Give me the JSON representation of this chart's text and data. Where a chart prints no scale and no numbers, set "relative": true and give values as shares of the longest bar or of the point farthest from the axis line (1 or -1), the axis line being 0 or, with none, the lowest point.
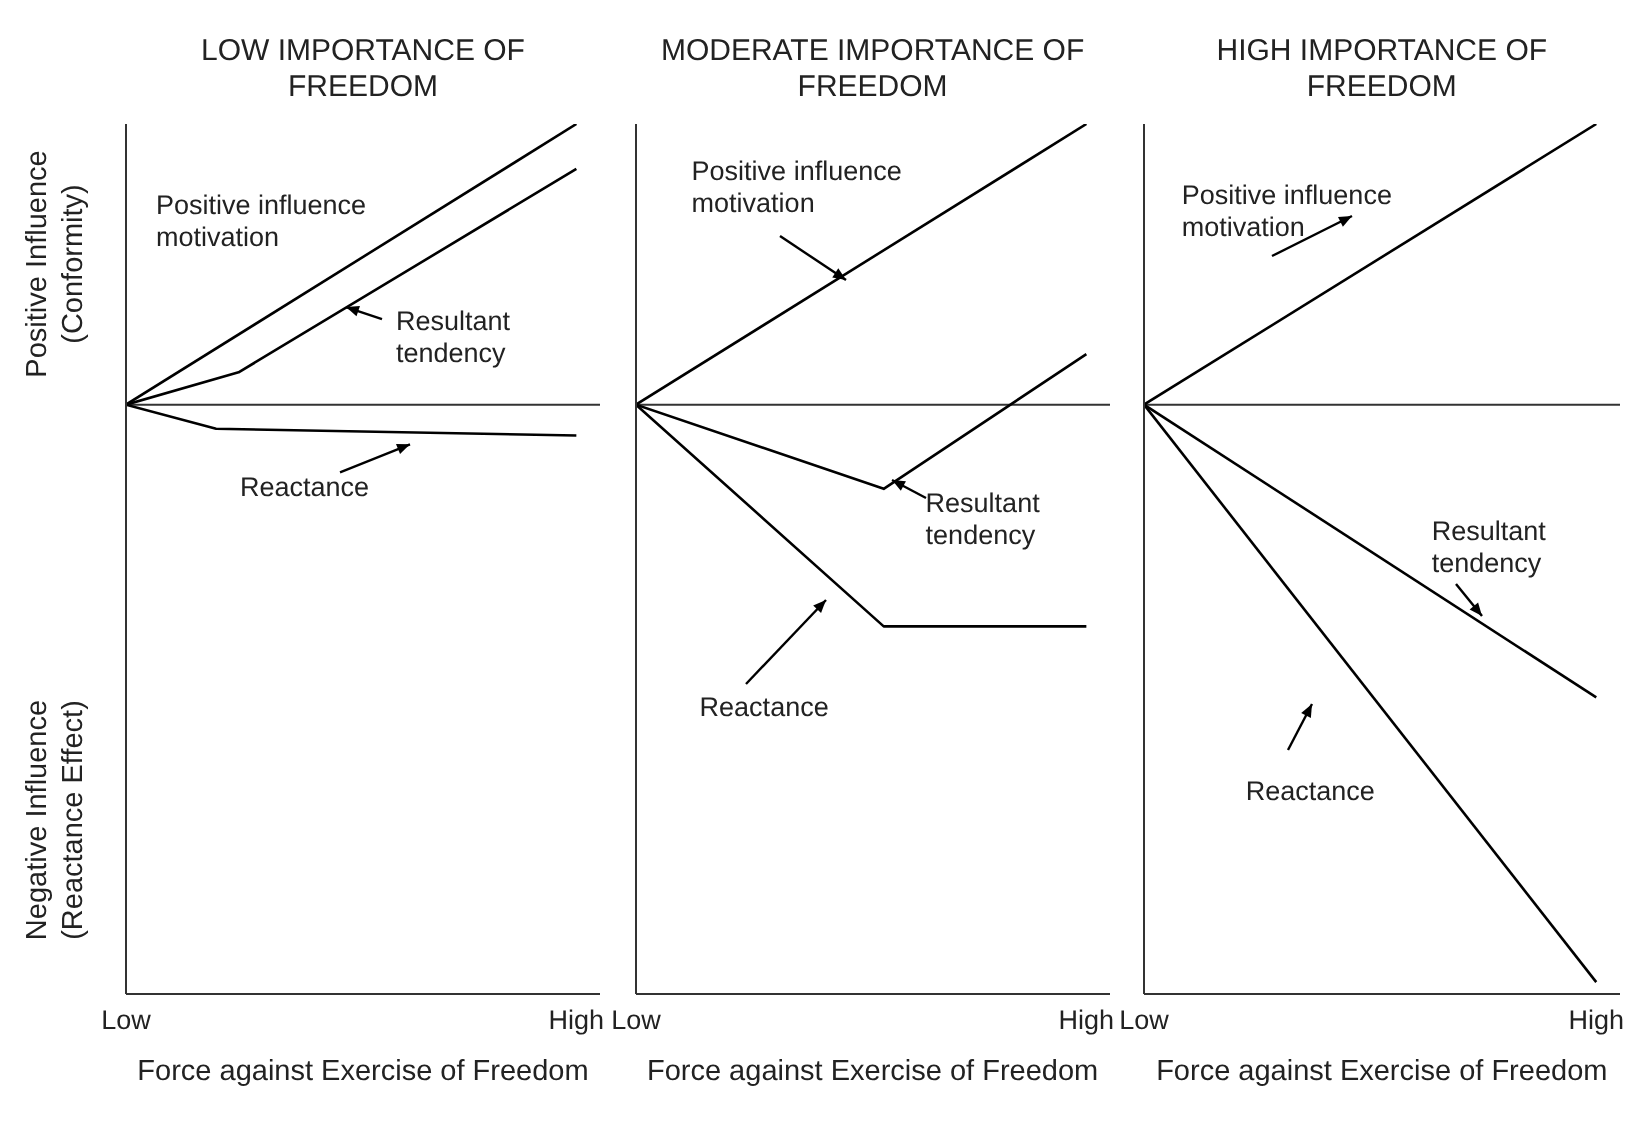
{
  "chart_data": [
    {
      "type": "line",
      "title": "LOW IMPORTANCE OF FREEDOM",
      "xlabel": "Force against Exercise of Freedom",
      "ylabel": "Positive Influence (Conformity)",
      "annotations": [
        "Negative Influence (Reactance Effect)"
      ],
      "relative": true,
      "categories": [
        "Low",
        null,
        null,
        null,
        null,
        null,
        null,
        null,
        null,
        null,
        null,
        null,
        null,
        null,
        null,
        null,
        null,
        null,
        null,
        null,
        "High"
      ],
      "series": [
        {
          "name": "Positive influence motivation",
          "color": "#000000",
          "values": [
            0,
            null,
            null,
            null,
            null,
            null,
            null,
            null,
            null,
            null,
            null,
            null,
            null,
            null,
            null,
            null,
            null,
            null,
            null,
            null,
            1
          ]
        },
        {
          "name": "Resultant tendency",
          "color": "#000000",
          "values": [
            0,
            null,
            null,
            null,
            null,
            0.115,
            null,
            null,
            null,
            null,
            null,
            null,
            null,
            null,
            null,
            null,
            null,
            null,
            null,
            null,
            0.84
          ]
        },
        {
          "name": "Reactance",
          "color": "#000000",
          "values": [
            0,
            null,
            null,
            null,
            -0.086,
            null,
            null,
            null,
            null,
            null,
            null,
            null,
            null,
            null,
            null,
            null,
            null,
            null,
            null,
            null,
            -0.11
          ]
        }
      ]
    },
    {
      "type": "line",
      "title": "MODERATE IMPORTANCE OF FREEDOM",
      "xlabel": "Force against Exercise of Freedom",
      "relative": true,
      "categories": [
        "Low",
        null,
        null,
        null,
        null,
        null,
        null,
        null,
        null,
        null,
        null,
        null,
        null,
        null,
        null,
        null,
        null,
        null,
        null,
        null,
        "High"
      ],
      "series": [
        {
          "name": "Positive influence motivation",
          "color": "#000000",
          "values": [
            0,
            null,
            null,
            null,
            null,
            null,
            null,
            null,
            null,
            null,
            null,
            null,
            null,
            null,
            null,
            null,
            null,
            null,
            null,
            null,
            1
          ]
        },
        {
          "name": "Resultant tendency",
          "color": "#000000",
          "values": [
            0,
            null,
            null,
            null,
            null,
            null,
            null,
            null,
            null,
            null,
            null,
            -0.3,
            null,
            null,
            null,
            null,
            null,
            null,
            null,
            null,
            0.18
          ]
        },
        {
          "name": "Reactance",
          "color": "#000000",
          "values": [
            0,
            null,
            null,
            null,
            null,
            null,
            null,
            null,
            null,
            null,
            null,
            -0.79,
            null,
            null,
            null,
            null,
            null,
            null,
            null,
            null,
            -0.79
          ]
        }
      ]
    },
    {
      "type": "line",
      "title": "HIGH IMPORTANCE OF FREEDOM",
      "xlabel": "Force against Exercise of Freedom",
      "relative": true,
      "categories": [
        "Low",
        null,
        null,
        null,
        null,
        null,
        null,
        null,
        null,
        null,
        null,
        null,
        null,
        null,
        null,
        null,
        null,
        null,
        null,
        null,
        "High"
      ],
      "series": [
        {
          "name": "Positive influence motivation",
          "color": "#000000",
          "values": [
            0,
            null,
            null,
            null,
            null,
            null,
            null,
            null,
            null,
            null,
            null,
            null,
            null,
            null,
            null,
            null,
            null,
            null,
            null,
            null,
            0.486
          ]
        },
        {
          "name": "Resultant tendency",
          "color": "#000000",
          "values": [
            0,
            null,
            null,
            null,
            null,
            null,
            null,
            null,
            null,
            null,
            null,
            null,
            null,
            null,
            null,
            null,
            null,
            null,
            null,
            null,
            -0.507
          ]
        },
        {
          "name": "Reactance",
          "color": "#000000",
          "values": [
            0,
            null,
            null,
            null,
            null,
            null,
            null,
            null,
            null,
            null,
            null,
            null,
            null,
            null,
            null,
            null,
            null,
            null,
            null,
            null,
            -1
          ]
        }
      ]
    }
  ]
}
